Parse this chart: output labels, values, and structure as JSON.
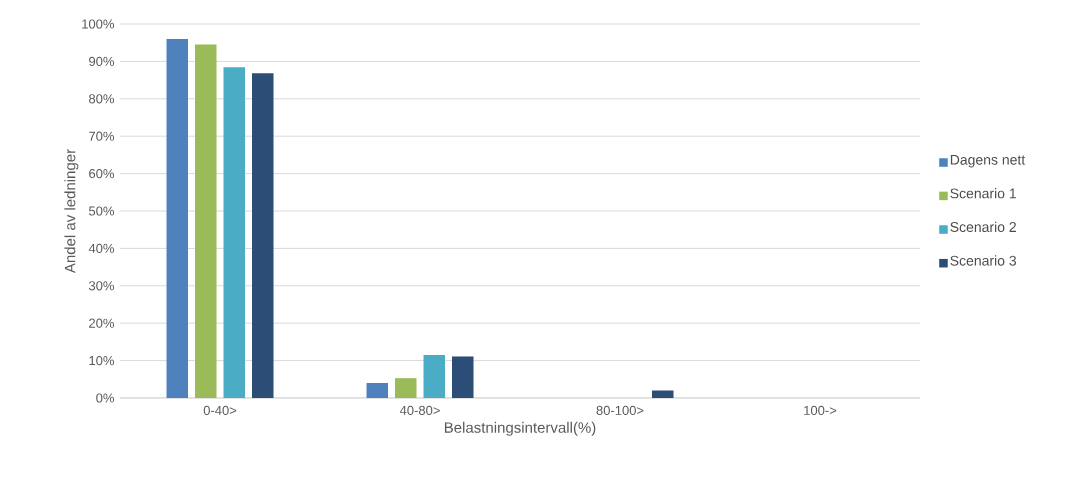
{
  "chart_data": {
    "type": "bar",
    "xlabel": "Belastningsintervall(%)",
    "ylabel": "Andel av ledninger",
    "categories": [
      "0-40>",
      "40-80>",
      "80-100>",
      "100->"
    ],
    "series": [
      {
        "name": "Dagens nett",
        "color": "#4f81bd",
        "values": [
          96,
          4,
          0,
          0
        ]
      },
      {
        "name": "Scenario 1",
        "color": "#9bbb59",
        "values": [
          94.5,
          5.3,
          0,
          0
        ]
      },
      {
        "name": "Scenario 2",
        "color": "#4bacc6",
        "values": [
          88.4,
          11.5,
          0,
          0
        ]
      },
      {
        "name": "Scenario 3",
        "color": "#2c4d75",
        "values": [
          86.8,
          11.1,
          2,
          0
        ]
      }
    ],
    "ylim": [
      0,
      100
    ],
    "yticks": [
      {
        "value": 0,
        "label": "0%"
      },
      {
        "value": 10,
        "label": "10%"
      },
      {
        "value": 20,
        "label": "20%"
      },
      {
        "value": 30,
        "label": "30%"
      },
      {
        "value": 40,
        "label": "40%"
      },
      {
        "value": 50,
        "label": "50%"
      },
      {
        "value": 60,
        "label": "60%"
      },
      {
        "value": 70,
        "label": "70%"
      },
      {
        "value": 80,
        "label": "80%"
      },
      {
        "value": 90,
        "label": "90%"
      },
      {
        "value": 100,
        "label": "100%"
      }
    ],
    "grid": "y",
    "legend": "right"
  }
}
